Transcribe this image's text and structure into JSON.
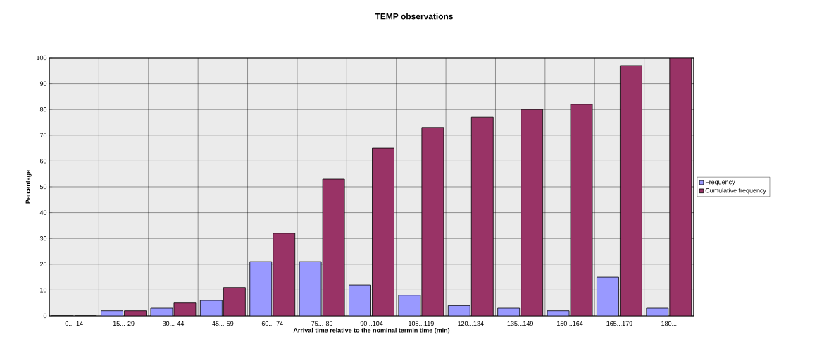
{
  "chart_data": {
    "type": "bar",
    "title": "TEMP observations",
    "xlabel": "Arrival time relative to the nominal termin time (min)",
    "ylabel": "Percentage",
    "categories": [
      "0... 14",
      "15... 29",
      "30... 44",
      "45... 59",
      "60... 74",
      "75... 89",
      "90...104",
      "105...119",
      "120...134",
      "135...149",
      "150...164",
      "165...179",
      "180..."
    ],
    "series": [
      {
        "name": "Frequency",
        "color": "#9999ff",
        "values": [
          0,
          2,
          3,
          6,
          21,
          21,
          12,
          8,
          4,
          3,
          2,
          15,
          3
        ]
      },
      {
        "name": "Cumulative frequency",
        "color": "#993366",
        "values": [
          0,
          2,
          5,
          11,
          32,
          53,
          65,
          73,
          77,
          80,
          82,
          97,
          100
        ]
      }
    ],
    "ylim": [
      0,
      100
    ],
    "yticks": [
      0,
      10,
      20,
      30,
      40,
      50,
      60,
      70,
      80,
      90,
      100
    ],
    "grid": true,
    "legend": "right"
  }
}
